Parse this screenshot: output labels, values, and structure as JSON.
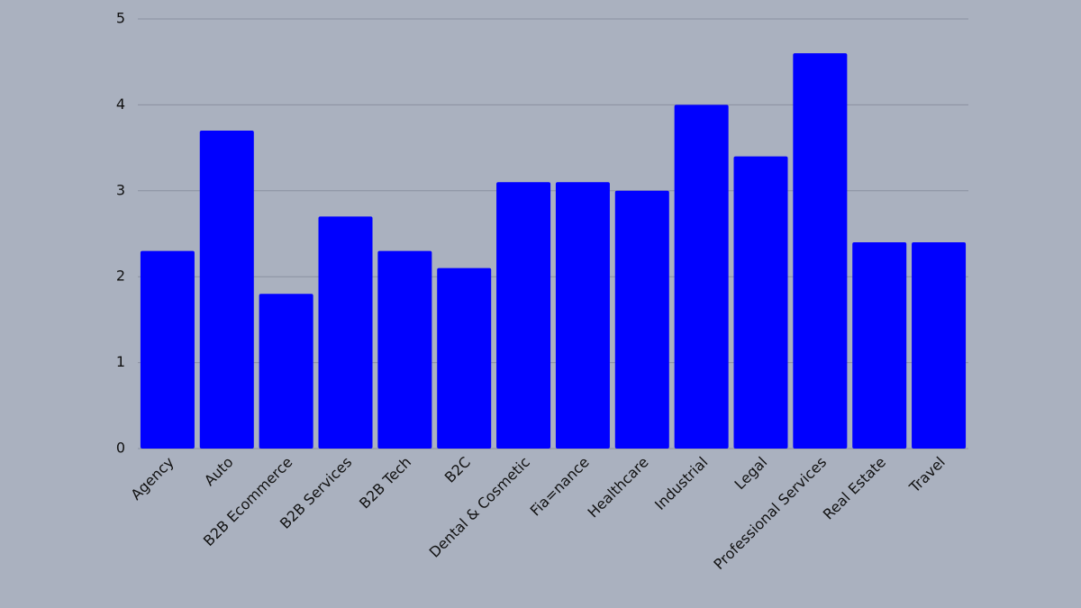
{
  "chart_data": {
    "type": "bar",
    "categories": [
      "Agency",
      "Auto",
      "B2B Ecommerce",
      "B2B Services",
      "B2B Tech",
      "B2C",
      "Dental & Cosmetic",
      "Fia=nance",
      "Healthcare",
      "Industrial",
      "Legal",
      "Professional Services",
      "Real Estate",
      "Travel"
    ],
    "values": [
      2.3,
      3.7,
      1.8,
      2.7,
      2.3,
      2.1,
      3.1,
      3.1,
      3.0,
      4.0,
      3.4,
      4.6,
      2.4,
      2.4
    ],
    "color": "#0000ff",
    "ylim": [
      0,
      5
    ],
    "yticks": [
      0,
      1,
      2,
      3,
      4,
      5
    ],
    "grid": true
  }
}
